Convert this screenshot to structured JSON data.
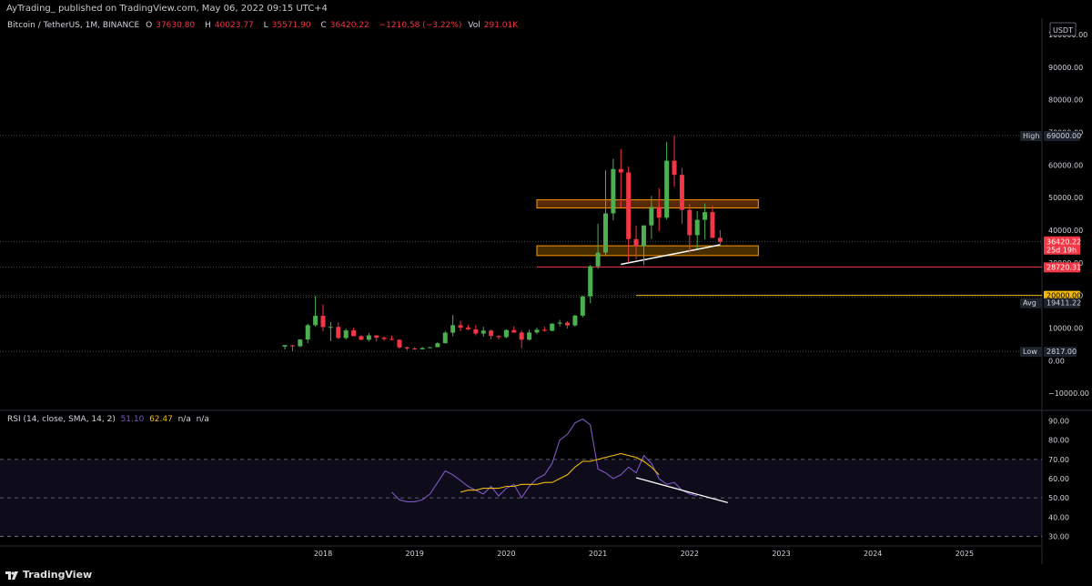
{
  "header": {
    "publisher_line": "AyTrading_  published on TradingView.com, May 06, 2022 09:15 UTC+4"
  },
  "legend": {
    "symbol": "Bitcoin / TetherUS, 1M, BINANCE",
    "open_label": "O",
    "open": "37630.80",
    "high_label": "H",
    "high": "40023.77",
    "low_label": "L",
    "low": "35571.90",
    "close_label": "C",
    "close": "36420.22",
    "change": "−1210.58 (−3.22%)",
    "vol_label": "Vol",
    "vol": "291.01K"
  },
  "rsi_legend": {
    "label": "RSI (14, close, SMA, 14, 2)",
    "rsi_value": "51.10",
    "sma_value": "62.47",
    "na1": "n/a",
    "na2": "n/a"
  },
  "currency": "USDT",
  "footer": {
    "brand": "TradingView"
  },
  "colors": {
    "up": "#4caf50",
    "down": "#f23645",
    "rsi": "#7e57c2",
    "rsi_sma": "#f0b90b",
    "zone_orange": "#ff9800",
    "support_red": "#f23645",
    "level_orange": "#f0b90b",
    "trendline": "#ffffff"
  },
  "chart_data": [
    {
      "type": "candlestick",
      "title": "Bitcoin / TetherUS, 1M, BINANCE",
      "ylim": [
        -15000,
        105000
      ],
      "y_ticks": [
        "100000.00",
        "90000.00",
        "80000.00",
        "70000.00",
        "60000.00",
        "50000.00",
        "40000.00",
        "30000.00",
        "20000.00",
        "10000.00",
        "0.00",
        "−10000.00"
      ],
      "x_ticks": [
        "2018",
        "2019",
        "2020",
        "2021",
        "2022",
        "2023",
        "2024",
        "2025"
      ],
      "price_labels": [
        {
          "tag": "High",
          "value": "69000.00",
          "price": 69000
        },
        {
          "tag": "",
          "value": "36420.22",
          "sub": "25d 19h",
          "price": 36420
        },
        {
          "tag": "",
          "value": "28720.31",
          "price": 28720
        },
        {
          "tag": "",
          "value": "20000.00",
          "price": 20000
        },
        {
          "tag": "Avg",
          "value": "19411.22",
          "price": 19411
        },
        {
          "tag": "Low",
          "value": "2817.00",
          "price": 2817
        }
      ],
      "ohlc_monthly_from_2017_08": [
        [
          4261,
          4745,
          3400,
          4724
        ],
        [
          4689,
          4789,
          2817,
          4378
        ],
        [
          4378,
          6470,
          4110,
          6463
        ],
        [
          6463,
          11300,
          5325,
          10855
        ],
        [
          10855,
          19798,
          10400,
          13716
        ],
        [
          13716,
          17176,
          9035,
          10285
        ],
        [
          10285,
          11786,
          5968,
          10326
        ],
        [
          10326,
          11711,
          6600,
          6923
        ],
        [
          6923,
          9759,
          6430,
          9246
        ],
        [
          9246,
          10020,
          8342,
          7485
        ],
        [
          7485,
          7761,
          6250,
          6391
        ],
        [
          6391,
          8491,
          5826,
          7730
        ],
        [
          7730,
          7760,
          5880,
          7011
        ],
        [
          7011,
          7402,
          6111,
          6626
        ],
        [
          6626,
          7680,
          6209,
          6371
        ],
        [
          6371,
          6540,
          3652,
          4041
        ],
        [
          4041,
          4312,
          3156,
          3690
        ],
        [
          3690,
          4140,
          3349,
          3437
        ],
        [
          3437,
          4198,
          3360,
          3826
        ],
        [
          3826,
          4107,
          3733,
          4102
        ],
        [
          4102,
          5619,
          4103,
          5320
        ],
        [
          5320,
          9100,
          5283,
          8555
        ],
        [
          8555,
          13970,
          7444,
          10854
        ],
        [
          10854,
          12200,
          9052,
          10085
        ],
        [
          10085,
          10956,
          9320,
          9594
        ],
        [
          9594,
          10880,
          7734,
          8293
        ],
        [
          8293,
          10370,
          7300,
          9199
        ],
        [
          9199,
          9513,
          6515,
          7546
        ],
        [
          7546,
          7750,
          6435,
          7193
        ],
        [
          7193,
          9578,
          6850,
          9352
        ],
        [
          9352,
          10500,
          8450,
          8600
        ],
        [
          8600,
          9200,
          3782,
          6412
        ],
        [
          6412,
          9460,
          6150,
          8620
        ],
        [
          8620,
          10067,
          8106,
          9448
        ],
        [
          9448,
          10380,
          8833,
          9138
        ],
        [
          9138,
          11444,
          8960,
          11335
        ],
        [
          11335,
          12468,
          10525,
          11649
        ],
        [
          11649,
          12050,
          9825,
          10776
        ],
        [
          10776,
          14100,
          10416,
          13791
        ],
        [
          13791,
          19863,
          13195,
          19695
        ],
        [
          19695,
          29300,
          17572,
          28923
        ],
        [
          28923,
          41950,
          28130,
          33092
        ],
        [
          33092,
          58352,
          32296,
          45136
        ],
        [
          45136,
          61844,
          43000,
          58740
        ],
        [
          58740,
          64854,
          46930,
          57694
        ],
        [
          57694,
          59500,
          30000,
          37253
        ],
        [
          37253,
          41330,
          31000,
          35045
        ],
        [
          35045,
          36600,
          29278,
          41461
        ],
        [
          41461,
          50500,
          37332,
          47101
        ],
        [
          47101,
          52920,
          39600,
          43824
        ],
        [
          43824,
          66999,
          43283,
          61299
        ],
        [
          61299,
          69000,
          53256,
          56950
        ],
        [
          56950,
          59053,
          42000,
          46216
        ],
        [
          46216,
          47990,
          32917,
          38466
        ],
        [
          38466,
          45821,
          34322,
          43160
        ],
        [
          43160,
          48190,
          37155,
          45510
        ],
        [
          45510,
          47444,
          37578,
          37630
        ],
        [
          37630,
          40023,
          35571,
          36420
        ]
      ],
      "annotations": [
        {
          "kind": "zone",
          "label": "resistance",
          "from": "2020-05",
          "to": "2022-10",
          "y": [
            46800,
            49300
          ]
        },
        {
          "kind": "zone",
          "label": "support",
          "from": "2020-05",
          "to": "2022-10",
          "y": [
            32200,
            35200
          ]
        },
        {
          "kind": "hline",
          "from": "2020-05",
          "y": 28720
        },
        {
          "kind": "hline",
          "from": "2021-06",
          "y": 20000
        },
        {
          "kind": "trendline",
          "from": [
            "2021-04",
            29500
          ],
          "to": [
            "2022-05",
            35500
          ]
        }
      ]
    },
    {
      "type": "line",
      "title": "RSI (14, close, SMA, 14, 2)",
      "ylim": [
        25,
        95
      ],
      "y_ticks": [
        "90.00",
        "80.00",
        "70.00",
        "60.00",
        "50.00",
        "40.00",
        "30.00"
      ],
      "bands": [
        70,
        50,
        30
      ],
      "series": [
        {
          "name": "RSI",
          "start": "2018-10",
          "values": [
            53,
            49,
            48,
            48,
            49,
            52,
            58,
            64,
            62,
            59,
            56,
            54,
            52,
            56,
            51,
            55,
            57,
            50,
            56,
            60,
            62,
            68,
            80,
            83,
            89,
            91,
            88,
            65,
            63,
            60,
            62,
            66,
            63,
            72,
            68,
            60,
            57,
            58,
            54,
            52,
            51
          ]
        },
        {
          "name": "SMA",
          "start": "2019-07",
          "values": [
            53,
            54,
            54,
            55,
            55,
            55,
            56,
            56,
            57,
            57,
            57,
            58,
            58,
            60,
            62,
            66,
            69,
            69,
            70,
            71,
            72,
            73,
            72,
            71,
            69,
            66,
            62
          ]
        }
      ],
      "annotations": [
        {
          "kind": "trendline",
          "from": [
            "2021-06",
            60.5
          ],
          "to": [
            "2022-06",
            47.5
          ]
        }
      ]
    }
  ]
}
